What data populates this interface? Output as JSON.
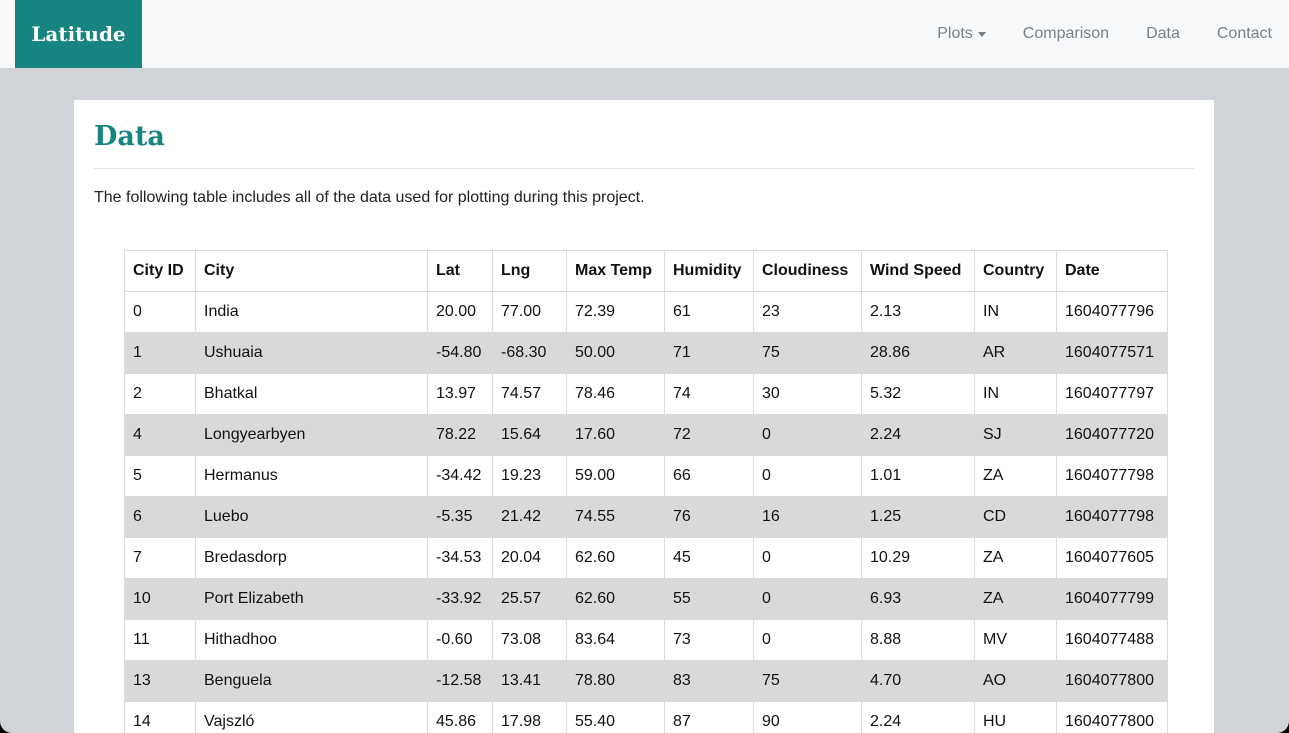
{
  "navbar": {
    "brand": "Latitude",
    "links": [
      {
        "label": "Plots"
      },
      {
        "label": "Comparison"
      },
      {
        "label": "Data"
      },
      {
        "label": "Contact"
      }
    ]
  },
  "page": {
    "title": "Data",
    "intro": "The following table includes all of the data used for plotting during this project."
  },
  "table": {
    "headers": [
      "City ID",
      "City",
      "Lat",
      "Lng",
      "Max Temp",
      "Humidity",
      "Cloudiness",
      "Wind Speed",
      "Country",
      "Date"
    ],
    "rows": [
      [
        "0",
        "India",
        "20.00",
        "77.00",
        "72.39",
        "61",
        "23",
        "2.13",
        "IN",
        "1604077796"
      ],
      [
        "1",
        "Ushuaia",
        "-54.80",
        "-68.30",
        "50.00",
        "71",
        "75",
        "28.86",
        "AR",
        "1604077571"
      ],
      [
        "2",
        "Bhatkal",
        "13.97",
        "74.57",
        "78.46",
        "74",
        "30",
        "5.32",
        "IN",
        "1604077797"
      ],
      [
        "4",
        "Longyearbyen",
        "78.22",
        "15.64",
        "17.60",
        "72",
        "0",
        "2.24",
        "SJ",
        "1604077720"
      ],
      [
        "5",
        "Hermanus",
        "-34.42",
        "19.23",
        "59.00",
        "66",
        "0",
        "1.01",
        "ZA",
        "1604077798"
      ],
      [
        "6",
        "Luebo",
        "-5.35",
        "21.42",
        "74.55",
        "76",
        "16",
        "1.25",
        "CD",
        "1604077798"
      ],
      [
        "7",
        "Bredasdorp",
        "-34.53",
        "20.04",
        "62.60",
        "45",
        "0",
        "10.29",
        "ZA",
        "1604077605"
      ],
      [
        "10",
        "Port Elizabeth",
        "-33.92",
        "25.57",
        "62.60",
        "55",
        "0",
        "6.93",
        "ZA",
        "1604077799"
      ],
      [
        "11",
        "Hithadhoo",
        "-0.60",
        "73.08",
        "83.64",
        "73",
        "0",
        "8.88",
        "MV",
        "1604077488"
      ],
      [
        "13",
        "Benguela",
        "-12.58",
        "13.41",
        "78.80",
        "83",
        "75",
        "4.70",
        "AO",
        "1604077800"
      ],
      [
        "14",
        "Vajszló",
        "45.86",
        "17.98",
        "55.40",
        "87",
        "90",
        "2.24",
        "HU",
        "1604077800"
      ]
    ]
  }
}
